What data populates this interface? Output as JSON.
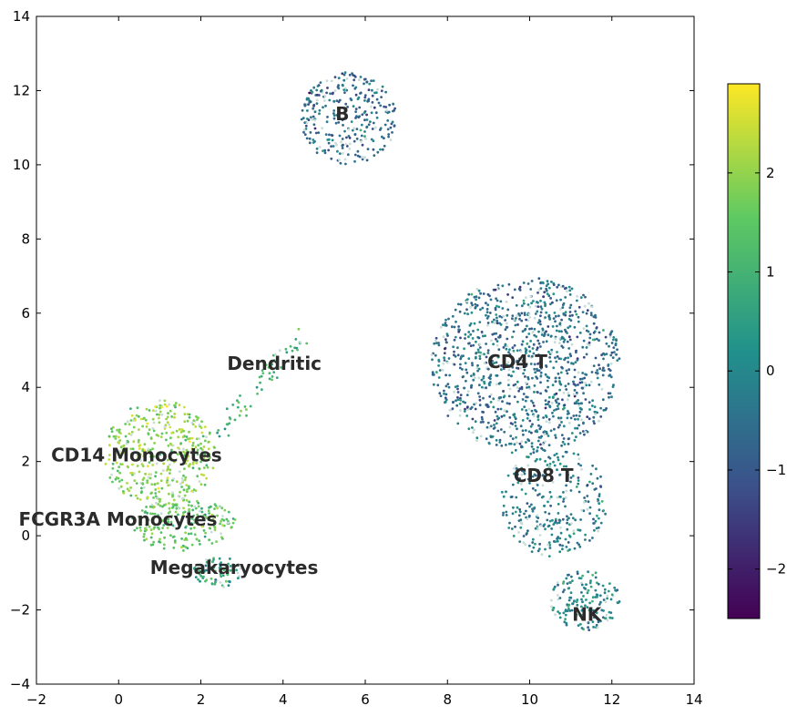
{
  "chart_data": {
    "type": "scatter",
    "title": "",
    "xlabel": "",
    "ylabel": "",
    "xlim": [
      -2,
      14
    ],
    "ylim": [
      -4,
      14
    ],
    "xticks": [
      -2,
      0,
      2,
      4,
      6,
      8,
      10,
      12,
      14
    ],
    "yticks": [
      -4,
      -2,
      0,
      2,
      4,
      6,
      8,
      10,
      12,
      14
    ],
    "grid": false,
    "colormap": "viridis",
    "colorbar": {
      "range": [
        -2.5,
        2.9
      ],
      "ticks": [
        -2,
        -1,
        0,
        1,
        2
      ],
      "colors": [
        "#440154",
        "#3b528b",
        "#21918c",
        "#5ec962",
        "#fde725"
      ]
    },
    "clusters": [
      {
        "label": "B",
        "center": [
          5.6,
          11.2
        ],
        "mean_value": -0.6
      },
      {
        "label": "CD4 T",
        "center": [
          9.9,
          4.6
        ],
        "mean_value": -0.5
      },
      {
        "label": "CD8 T",
        "center": [
          10.4,
          1.2
        ],
        "mean_value": -0.3
      },
      {
        "label": "NK",
        "center": [
          11.3,
          -1.7
        ],
        "mean_value": 0.0
      },
      {
        "label": "Dendritic",
        "center": [
          3.7,
          4.3
        ],
        "mean_value": 1.0
      },
      {
        "label": "CD14 Monocytes",
        "center": [
          1.1,
          2.2
        ],
        "mean_value": 1.9
      },
      {
        "label": "FCGR3A Monocytes",
        "center": [
          1.6,
          0.4
        ],
        "mean_value": 1.5
      },
      {
        "label": "Megakaryocytes",
        "center": [
          2.5,
          -0.9
        ],
        "mean_value": 0.6
      }
    ]
  }
}
